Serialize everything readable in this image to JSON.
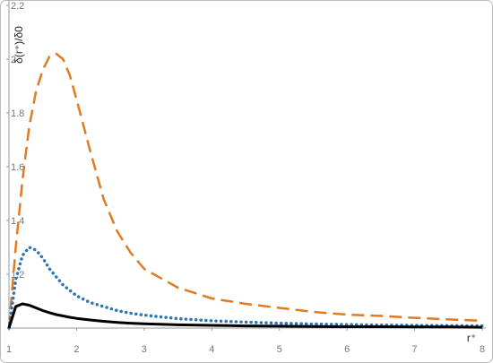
{
  "chart_data": {
    "type": "line",
    "y_label": "δ(r⁺)/δ0",
    "x_label": "r⁺",
    "x": [
      1,
      1.1,
      1.2,
      1.3,
      1.4,
      1.5,
      1.6,
      1.7,
      1.8,
      1.9,
      2,
      2.2,
      2.4,
      2.6,
      2.8,
      3,
      3.5,
      4,
      4.5,
      5,
      5.5,
      6,
      6.5,
      7,
      7.5,
      8
    ],
    "series": [
      {
        "color": "#e07b22",
        "dash": "dashed",
        "values": [
          1,
          1.3,
          1.55,
          1.75,
          1.88,
          1.96,
          2.01,
          2.02,
          2.0,
          1.94,
          1.85,
          1.66,
          1.48,
          1.36,
          1.28,
          1.22,
          1.15,
          1.11,
          1.09,
          1.075,
          1.06,
          1.05,
          1.045,
          1.038,
          1.032,
          1.027
        ]
      },
      {
        "color": "#2e75b6",
        "dash": "dotted",
        "values": [
          1,
          1.18,
          1.27,
          1.3,
          1.29,
          1.26,
          1.22,
          1.19,
          1.16,
          1.14,
          1.12,
          1.095,
          1.08,
          1.065,
          1.055,
          1.048,
          1.035,
          1.027,
          1.022,
          1.018,
          1.015,
          1.013,
          1.011,
          1.01,
          1.009,
          1.008
        ]
      },
      {
        "color": "#000000",
        "dash": "solid",
        "values": [
          1,
          1.08,
          1.09,
          1.085,
          1.075,
          1.065,
          1.057,
          1.05,
          1.045,
          1.04,
          1.036,
          1.03,
          1.025,
          1.021,
          1.018,
          1.016,
          1.012,
          1.01,
          1.008,
          1.007,
          1.006,
          1.005,
          1.005,
          1.004,
          1.004,
          1.003
        ]
      }
    ],
    "xlim": [
      1,
      8
    ],
    "xticks": [
      1,
      2,
      3,
      4,
      5,
      6,
      7,
      8
    ],
    "ylim": [
      1,
      2.2
    ],
    "yticks": [
      1.2,
      1.4,
      1.6,
      1.8,
      2,
      2.2
    ],
    "grid": false
  }
}
